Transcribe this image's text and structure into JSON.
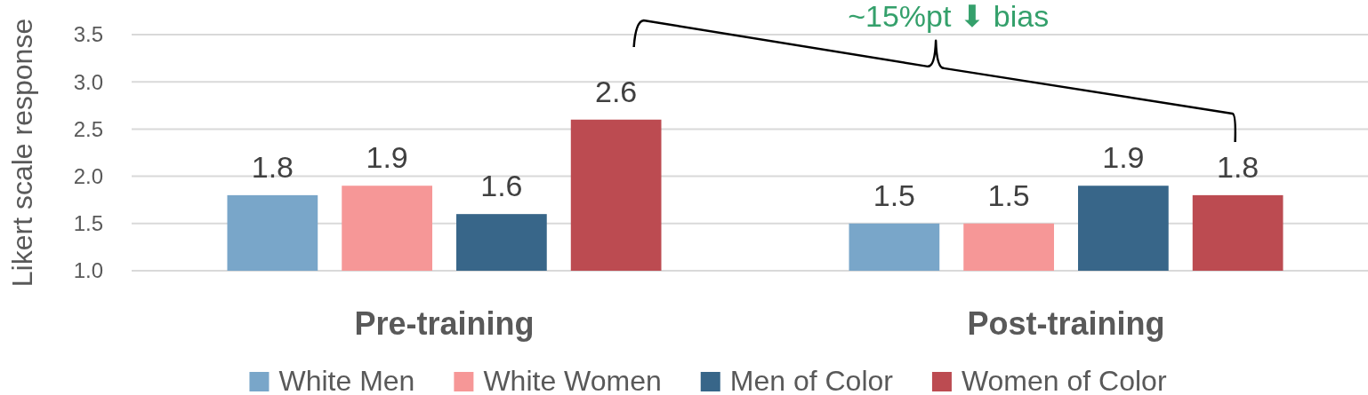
{
  "chart_data": {
    "type": "bar",
    "ylabel": "Likert scale response",
    "categories": [
      "Pre-training",
      "Post-training"
    ],
    "series": [
      {
        "name": "White Men",
        "color": "#79a6c9",
        "values": [
          1.8,
          1.5
        ]
      },
      {
        "name": "White Women",
        "color": "#f69797",
        "values": [
          1.9,
          1.5
        ]
      },
      {
        "name": "Men of Color",
        "color": "#386689",
        "values": [
          1.6,
          1.9
        ]
      },
      {
        "name": "Women of Color",
        "color": "#bc4b51",
        "values": [
          2.6,
          1.8
        ]
      }
    ],
    "ylim": [
      1,
      3.5
    ],
    "yticks": [
      {
        "value": 1,
        "label": "1.0"
      },
      1.5,
      {
        "value": 2,
        "label": "2.0"
      },
      2.5,
      {
        "value": 3,
        "label": "3.0"
      },
      3.5
    ],
    "grid": "y",
    "legend": "bottom",
    "data_labels": true,
    "annotations": [
      "~15%pt ⬇ bias"
    ]
  }
}
